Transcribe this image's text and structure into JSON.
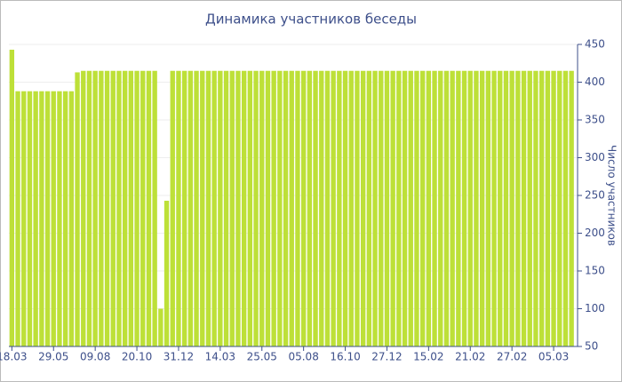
{
  "chart_data": {
    "type": "bar",
    "title": "Динамика участников беседы",
    "y_axis_label": "Число участников",
    "categories": [
      "18.03",
      null,
      null,
      null,
      null,
      null,
      null,
      "29.05",
      null,
      null,
      null,
      null,
      null,
      null,
      "09.08",
      null,
      null,
      null,
      null,
      null,
      null,
      "20.10",
      null,
      null,
      null,
      null,
      null,
      null,
      "31.12",
      null,
      null,
      null,
      null,
      null,
      null,
      "14.03",
      null,
      null,
      null,
      null,
      null,
      null,
      "25.05",
      null,
      null,
      null,
      null,
      null,
      null,
      "05.08",
      null,
      null,
      null,
      null,
      null,
      null,
      "16.10",
      null,
      null,
      null,
      null,
      null,
      null,
      "27.12",
      null,
      null,
      null,
      null,
      null,
      null,
      "15.02",
      null,
      null,
      null,
      null,
      null,
      null,
      "21.02",
      null,
      null,
      null,
      null,
      null,
      null,
      "27.02",
      null,
      null,
      null,
      null,
      null,
      null,
      "05.03",
      null,
      null,
      null
    ],
    "values": [
      443,
      388,
      388,
      388,
      388,
      388,
      388,
      388,
      388,
      388,
      388,
      413,
      415,
      415,
      415,
      415,
      415,
      415,
      415,
      415,
      415,
      415,
      415,
      415,
      415,
      100,
      243,
      415,
      415,
      415,
      415,
      415,
      415,
      415,
      415,
      415,
      415,
      415,
      415,
      415,
      415,
      415,
      415,
      415,
      415,
      415,
      415,
      415,
      415,
      415,
      415,
      415,
      415,
      415,
      415,
      415,
      415,
      415,
      415,
      415,
      415,
      415,
      415,
      415,
      415,
      415,
      415,
      415,
      415,
      415,
      415,
      415,
      415,
      415,
      415,
      415,
      415,
      415,
      415,
      415,
      415,
      415,
      415,
      415,
      415,
      415,
      415,
      415,
      415,
      415,
      415,
      415,
      415,
      415,
      415
    ],
    "color": "#bde038",
    "ylim": [
      50,
      450
    ],
    "yticks": [
      50,
      100,
      150,
      200,
      250,
      300,
      350,
      400,
      450
    ],
    "y_axis_side": "right",
    "grid": true
  }
}
